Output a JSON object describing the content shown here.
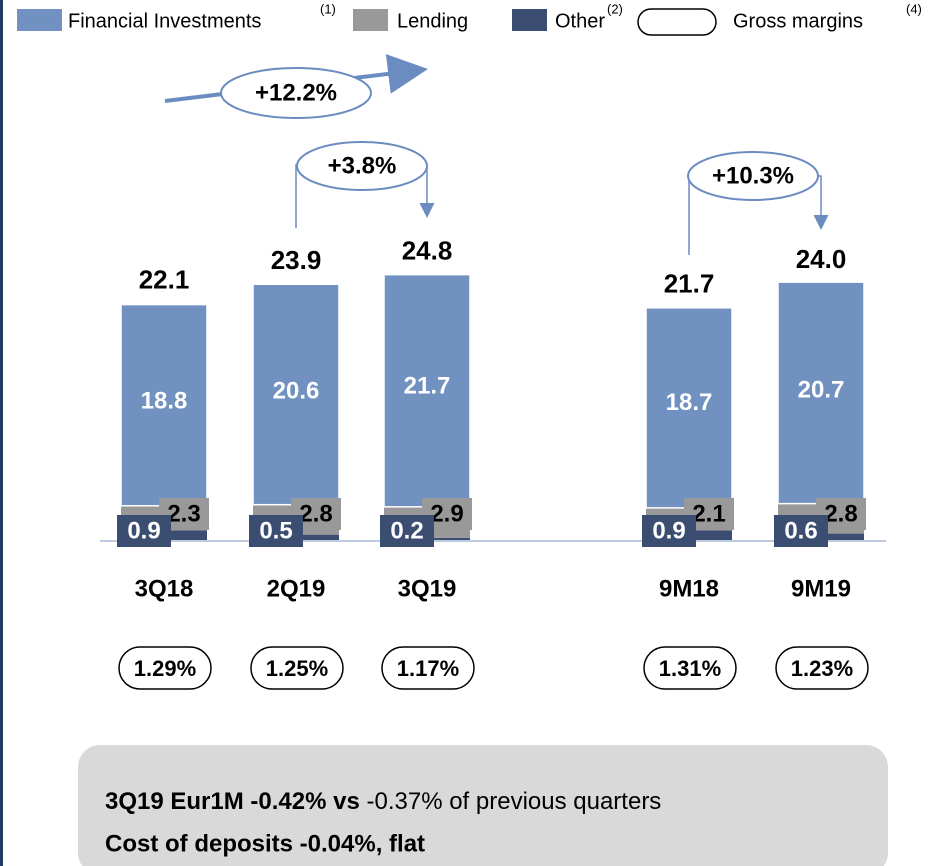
{
  "chart_data": {
    "type": "stacked_bar",
    "categories": [
      "3Q18",
      "2Q19",
      "3Q19",
      "9M18",
      "9M19"
    ],
    "series": [
      {
        "name": "Other",
        "note": "(2)",
        "color": "#3b4e72",
        "values": [
          0.9,
          0.5,
          0.2,
          0.9,
          0.6
        ]
      },
      {
        "name": "Lending",
        "color": "#999999",
        "values": [
          2.3,
          2.8,
          2.9,
          2.1,
          2.8
        ]
      },
      {
        "name": "Financial Investments",
        "note": "(1)",
        "color": "#7191c0",
        "values": [
          18.8,
          20.6,
          21.7,
          18.7,
          20.7
        ]
      }
    ],
    "totals": [
      22.1,
      23.9,
      24.8,
      21.7,
      24.0
    ],
    "totals_labels": [
      "22.1",
      "23.9",
      "24.8",
      "21.7",
      "24.0"
    ],
    "gross_margins": {
      "name": "Gross margins",
      "note": "(4)",
      "values": [
        1.29,
        1.25,
        1.17,
        1.31,
        1.23
      ],
      "value_labels": [
        "1.29%",
        "1.25%",
        "1.17%",
        "1.31%",
        "1.23%"
      ]
    },
    "annotations": [
      "+12.2%",
      "+3.8%",
      "+10.3%"
    ],
    "footer": [
      {
        "bold": "3Q19 Eur1M  -0.42% vs",
        "normal": "-0.37% of previous quarters"
      },
      {
        "bold": "Cost of deposits -0.04%, flat"
      }
    ]
  }
}
